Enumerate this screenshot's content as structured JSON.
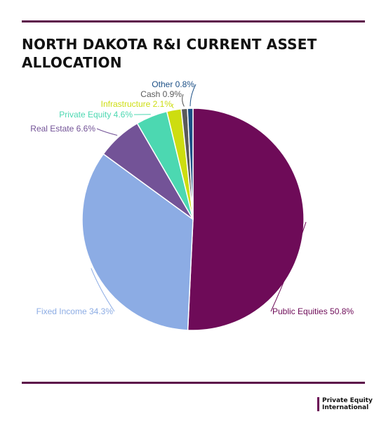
{
  "title": "NORTH DAKOTA R&I CURRENT ASSET ALLOCATION",
  "chart_data": {
    "type": "pie",
    "slices": [
      {
        "name": "Public Equities",
        "value": 50.8,
        "color": "#6e0b58",
        "label": "Public Equities 50.8%"
      },
      {
        "name": "Fixed Income",
        "value": 34.3,
        "color": "#8cace4",
        "label": "Fixed Income 34.3%"
      },
      {
        "name": "Real Estate",
        "value": 6.6,
        "color": "#735397",
        "label": "Real Estate 6.6%"
      },
      {
        "name": "Private Equity",
        "value": 4.6,
        "color": "#4cd8b1",
        "label": "Private Equity 4.6%"
      },
      {
        "name": "Infrastructure",
        "value": 2.1,
        "color": "#cddd10",
        "label": "Infrastructure 2.1%"
      },
      {
        "name": "Cash",
        "value": 0.9,
        "color": "#5a5a5a",
        "label": "Cash 0.9%"
      },
      {
        "name": "Other",
        "value": 0.8,
        "color": "#1b4f86",
        "label": "Other 0.8%"
      }
    ]
  },
  "logo": {
    "line1": "Private Equity",
    "line2": "International"
  }
}
